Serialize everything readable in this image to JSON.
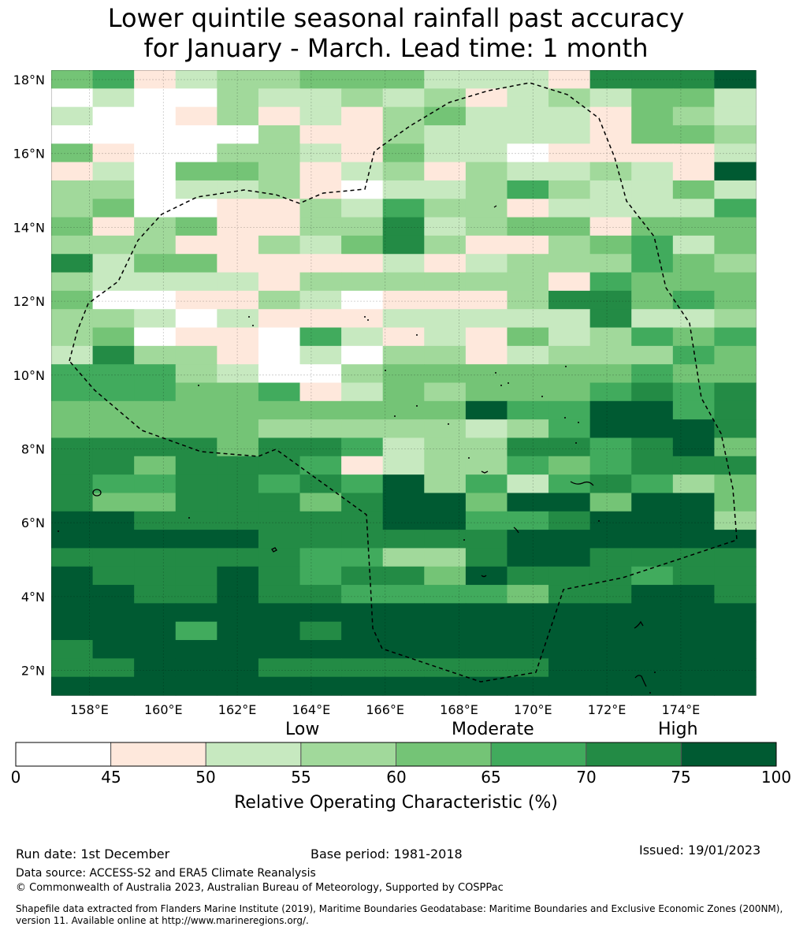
{
  "title_line1": "Lower quintile seasonal rainfall past accuracy",
  "title_line2": "for January - March. Lead time: 1 month",
  "map": {
    "lon_ticks": [
      "158°E",
      "160°E",
      "162°E",
      "164°E",
      "166°E",
      "168°E",
      "170°E",
      "172°E",
      "174°E"
    ],
    "lat_ticks": [
      "18°N",
      "16°N",
      "14°N",
      "12°N",
      "10°N",
      "8°N",
      "6°N",
      "4°N",
      "2°N"
    ],
    "rows": [
      "45123344422216667",
      "02003223231232442",
      "20013121342221432",
      "00000311322221443",
      "41003321422011112",
      "12044312313223217",
      "33022310223532242",
      "34001132533122225",
      "41341133623441444",
      "33311324631134524",
      "62441111212333543",
      "32222133333315444",
      "40011320111366454",
      "33202111222226223",
      "34011052121423545",
      "26331020331233354",
      "55532003444444544",
      "55544512434445656",
      "44444444447557756",
      "44444333332357776",
      "66664665233665674",
      "66466651233545666",
      "65566565735256534",
      "64466646774774774",
      "77666666775567773",
      "77777666666777777",
      "66666655336776666",
      "76667656647666566",
      "77667665555466776",
      "77777777777777777",
      "77757767777777777",
      "67777777777777777",
      "66777666666677777",
      "77777777777777777"
    ],
    "palette": [
      "#ffffff",
      "#fee8dc",
      "#c7e9c0",
      "#a1d99b",
      "#74c476",
      "#41ab5d",
      "#238b45",
      "#005a32"
    ]
  },
  "colorbar": {
    "categories": [
      "Low",
      "Moderate",
      "High"
    ],
    "ticks": [
      "0",
      "45",
      "50",
      "55",
      "60",
      "65",
      "70",
      "75",
      "100"
    ],
    "colors": [
      "#ffffff",
      "#fee8dc",
      "#c7e9c0",
      "#a1d99b",
      "#74c476",
      "#41ab5d",
      "#238b45",
      "#005a32"
    ],
    "label": "Relative Operating Characteristic (%)"
  },
  "footer": {
    "run_date": "Run date: 1st December",
    "base_period": "Base period: 1981-2018",
    "issued": "Issued: 19/01/2023",
    "data_source": "Data source: ACCESS-S2 and ERA5 Climate Reanalysis",
    "copyright": "© Commonwealth of Australia 2023, Australian Bureau of Meteorology, Supported by COSPPac",
    "shapefile_line1": "Shapefile data extracted from Flanders Marine Institute (2019), Maritime Boundaries Geodatabase: Maritime Boundaries and Exclusive Economic Zones (200NM),",
    "shapefile_line2": "version 11. Available online at http://www.marineregions.org/."
  }
}
